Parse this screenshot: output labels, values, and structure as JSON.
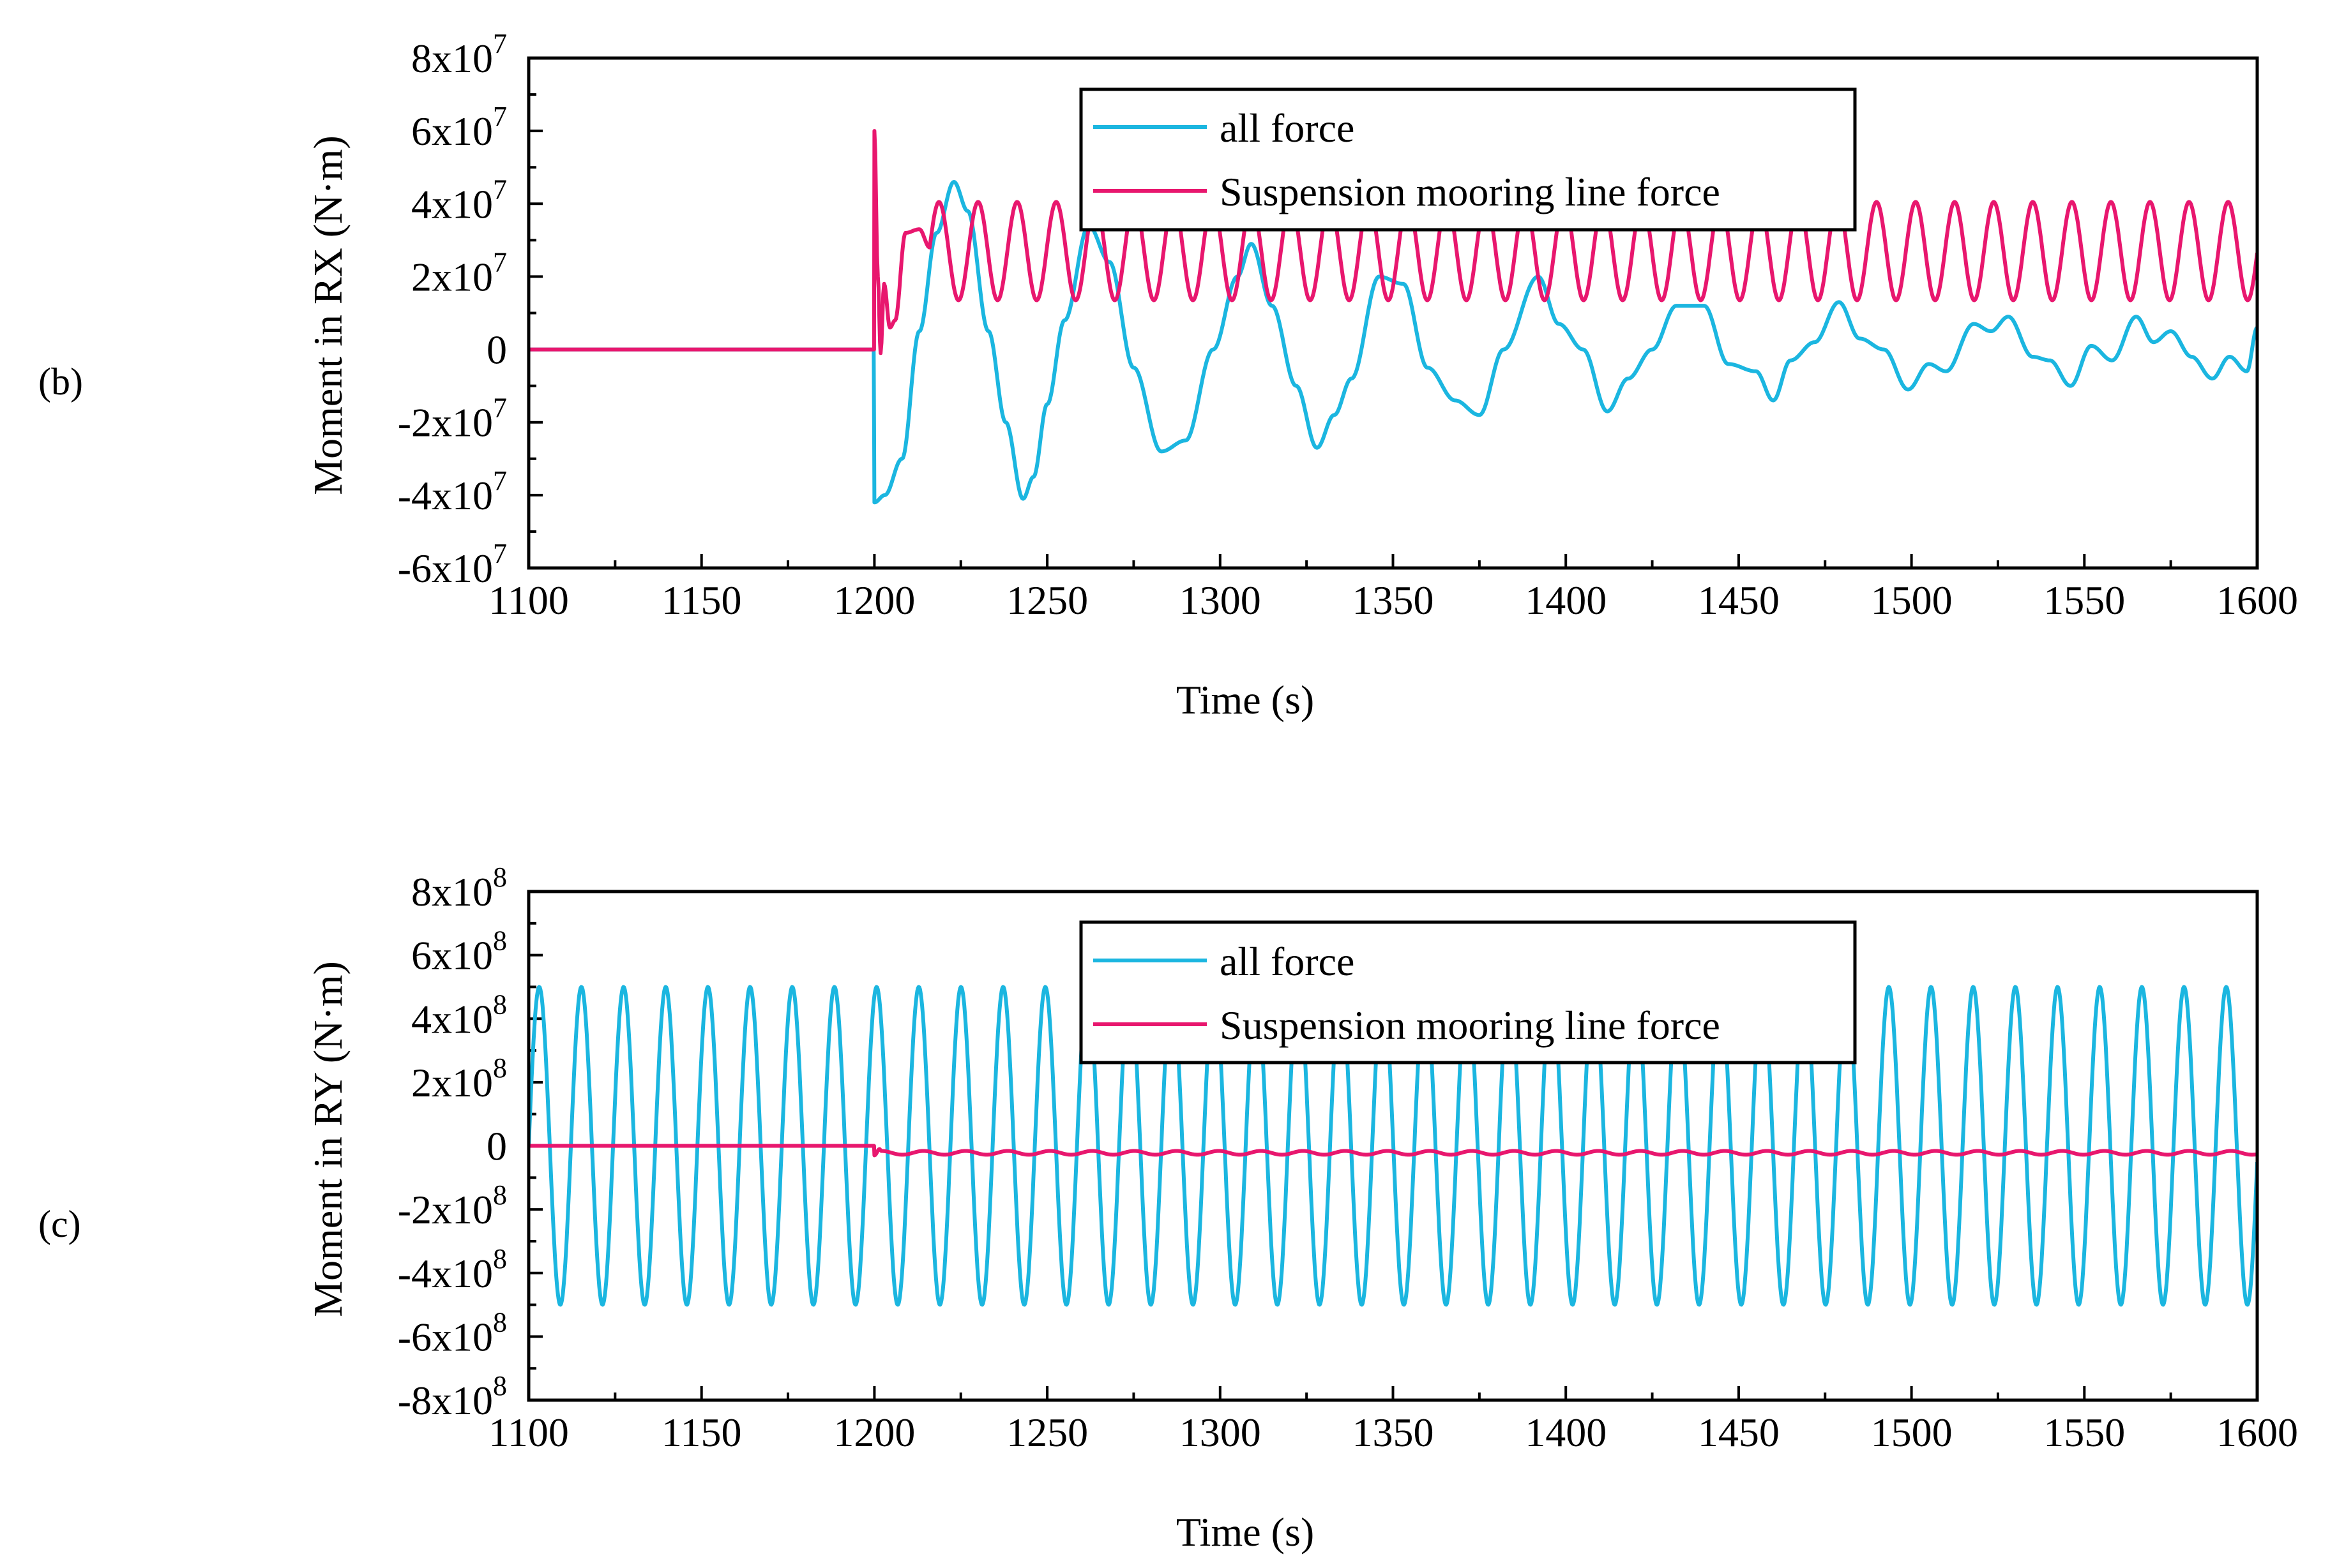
{
  "chart_data": [
    {
      "panel_label": "(b)",
      "type": "line",
      "xlabel": "Time  (s)",
      "ylabel": "Moment in RX  (N·m)",
      "xlim": [
        1100,
        1600
      ],
      "ylim": [
        -60000000,
        80000000
      ],
      "x_ticks": [
        1100,
        1150,
        1200,
        1250,
        1300,
        1350,
        1400,
        1450,
        1500,
        1550,
        1600
      ],
      "y_ticks": [
        {
          "value": 80000000,
          "mantissa": "8x10",
          "exp": "7"
        },
        {
          "value": 60000000,
          "mantissa": "6x10",
          "exp": "7"
        },
        {
          "value": 40000000,
          "mantissa": "4x10",
          "exp": "7"
        },
        {
          "value": 20000000,
          "mantissa": "2x10",
          "exp": "7"
        },
        {
          "value": 0,
          "mantissa": "0",
          "exp": ""
        },
        {
          "value": -20000000,
          "mantissa": "-2x10",
          "exp": "7"
        },
        {
          "value": -40000000,
          "mantissa": "-4x10",
          "exp": "7"
        },
        {
          "value": -60000000,
          "mantissa": "-6x10",
          "exp": "7"
        }
      ],
      "legend_position": "top-center",
      "series": [
        {
          "name": "all force",
          "color": "#1bb6e0",
          "description": "Zero until t=1200 s, then jumps to -4.2e7 and oscillates with a decaying envelope of period about 45 s.",
          "points": [
            [
              1100,
              0
            ],
            [
              1199.8,
              0
            ],
            [
              1200,
              -42000000
            ],
            [
              1203,
              -40000000
            ],
            [
              1208,
              -30000000
            ],
            [
              1213,
              5000000
            ],
            [
              1218,
              32000000
            ],
            [
              1223,
              46000000
            ],
            [
              1227,
              38000000
            ],
            [
              1233,
              5000000
            ],
            [
              1238,
              -20000000
            ],
            [
              1243,
              -41000000
            ],
            [
              1246,
              -35000000
            ],
            [
              1250,
              -15000000
            ],
            [
              1255,
              8000000
            ],
            [
              1262,
              34000000
            ],
            [
              1268,
              24000000
            ],
            [
              1275,
              -5000000
            ],
            [
              1283,
              -28000000
            ],
            [
              1290,
              -25000000
            ],
            [
              1298,
              0
            ],
            [
              1305,
              20000000
            ],
            [
              1309,
              29000000
            ],
            [
              1315,
              12000000
            ],
            [
              1322,
              -10000000
            ],
            [
              1328,
              -27000000
            ],
            [
              1333,
              -18000000
            ],
            [
              1338,
              -8000000
            ],
            [
              1346,
              20000000
            ],
            [
              1353,
              18000000
            ],
            [
              1360,
              -5000000
            ],
            [
              1368,
              -14000000
            ],
            [
              1375,
              -18000000
            ],
            [
              1382,
              0
            ],
            [
              1392,
              20000000
            ],
            [
              1398,
              7000000
            ],
            [
              1405,
              0
            ],
            [
              1412,
              -17000000
            ],
            [
              1418,
              -8000000
            ],
            [
              1425,
              0
            ],
            [
              1432,
              12000000
            ],
            [
              1440,
              12000000
            ],
            [
              1447,
              -4000000
            ],
            [
              1455,
              -6000000
            ],
            [
              1460,
              -14000000
            ],
            [
              1465,
              -3000000
            ],
            [
              1472,
              2000000
            ],
            [
              1479,
              13000000
            ],
            [
              1485,
              3000000
            ],
            [
              1492,
              0
            ],
            [
              1499,
              -11000000
            ],
            [
              1505,
              -4000000
            ],
            [
              1510,
              -6000000
            ],
            [
              1518,
              7000000
            ],
            [
              1523,
              5000000
            ],
            [
              1528,
              9000000
            ],
            [
              1535,
              -2000000
            ],
            [
              1540,
              -3000000
            ],
            [
              1546,
              -10000000
            ],
            [
              1552,
              1000000
            ],
            [
              1558,
              -3000000
            ],
            [
              1565,
              9000000
            ],
            [
              1570,
              2000000
            ],
            [
              1575,
              5000000
            ],
            [
              1581,
              -2000000
            ],
            [
              1587,
              -8000000
            ],
            [
              1592,
              -2000000
            ],
            [
              1597,
              -6000000
            ],
            [
              1600,
              6000000
            ]
          ]
        },
        {
          "name": "Suspension mooring line force",
          "color": "#e8176e",
          "description": "Zero until t=1200 s, spike to 6e7 at t=1200, then steady oscillation between ~1.4e7 and ~4.1e7 with period about 11.3 s.",
          "points": [
            [
              1100,
              0
            ],
            [
              1199.9,
              0
            ],
            [
              1200,
              60000000
            ],
            [
              1201,
              20000000
            ],
            [
              1201.8,
              -1000000
            ],
            [
              1202.8,
              18000000
            ],
            [
              1204.5,
              6000000
            ],
            [
              1206,
              8000000
            ],
            [
              1209,
              32000000
            ],
            [
              1213,
              33000000
            ],
            [
              1216,
              28000000
            ]
          ],
          "oscillation": {
            "t_start": 1216,
            "t_end": 1600,
            "mean": 27000000,
            "amplitude": 13500000,
            "period": 11.3
          }
        }
      ]
    },
    {
      "panel_label": "(c)",
      "type": "line",
      "xlabel": "Time  (s)",
      "ylabel": "Moment in RY  (N·m)",
      "xlim": [
        1100,
        1600
      ],
      "ylim": [
        -800000000,
        800000000
      ],
      "x_ticks": [
        1100,
        1150,
        1200,
        1250,
        1300,
        1350,
        1400,
        1450,
        1500,
        1550,
        1600
      ],
      "y_ticks": [
        {
          "value": 800000000,
          "mantissa": "8x10",
          "exp": "8"
        },
        {
          "value": 600000000,
          "mantissa": "6x10",
          "exp": "8"
        },
        {
          "value": 400000000,
          "mantissa": "4x10",
          "exp": "8"
        },
        {
          "value": 200000000,
          "mantissa": "2x10",
          "exp": "8"
        },
        {
          "value": 0,
          "mantissa": "0",
          "exp": ""
        },
        {
          "value": -200000000,
          "mantissa": "-2x10",
          "exp": "8"
        },
        {
          "value": -400000000,
          "mantissa": "-4x10",
          "exp": "8"
        },
        {
          "value": -600000000,
          "mantissa": "-6x10",
          "exp": "8"
        },
        {
          "value": -800000000,
          "mantissa": "-8x10",
          "exp": "8"
        }
      ],
      "legend_position": "top-center",
      "series": [
        {
          "name": "all force",
          "color": "#1bb6e0",
          "description": "Continuous sinusoidal oscillation of amplitude about 5e8 with period about 12.2 s over the whole range.",
          "oscillation": {
            "t_start": 1100,
            "t_end": 1600,
            "mean": 0,
            "amplitude": 500000000,
            "period": 12.2
          }
        },
        {
          "name": "Suspension mooring line force",
          "color": "#e8176e",
          "description": "Zero until t=1200 s, then small oscillation around -2.2e7.",
          "points": [
            [
              1100,
              0
            ],
            [
              1199.9,
              0
            ],
            [
              1200,
              -30000000
            ],
            [
              1201.5,
              -10000000
            ]
          ],
          "oscillation": {
            "t_start": 1202,
            "t_end": 1600,
            "mean": -22000000,
            "amplitude": 6000000,
            "period": 12.2
          }
        }
      ]
    }
  ]
}
